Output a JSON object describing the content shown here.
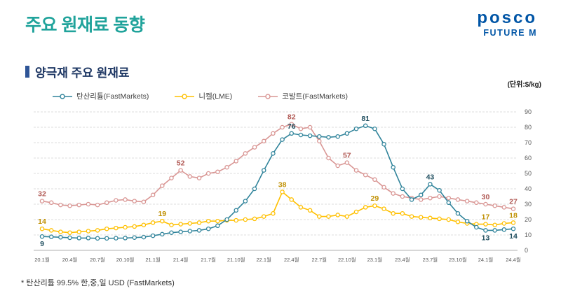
{
  "header": {
    "title": "주요 원재료 동향",
    "logo": {
      "line1": "posco",
      "line2": "FUTURE M"
    },
    "section_title": "양극재 주요 원재료",
    "unit_label": "(단위:$/kg)"
  },
  "footnote": "* 탄산리튬 99.5% 한,중,일 USD (FastMarkets)",
  "colors": {
    "title": "#20A39B",
    "logo_blue": "#0055A6",
    "section_text": "#1F3864",
    "section_bar": "#2F5597",
    "grid": "#DCDCDC",
    "axis": "#AFAFAF",
    "tick_text": "#595959"
  },
  "chart_data": {
    "type": "line",
    "grid": true,
    "legend_position": "top",
    "ylim": [
      0,
      90
    ],
    "y_ticks": [
      0,
      10,
      20,
      30,
      40,
      50,
      60,
      70,
      80,
      90
    ],
    "x_tick_every": 3,
    "x_tick_labels": [
      "20.1월",
      "20.4월",
      "20.7월",
      "20.10월",
      "21.1월",
      "21.4월",
      "21.7월",
      "21.10월",
      "22.1월",
      "22.4월",
      "22.7월",
      "22.10월",
      "23.1월",
      "23.4월",
      "23.7월",
      "23.10월",
      "24.1월",
      "24.4월"
    ],
    "x": [
      "20.1",
      "20.2",
      "20.3",
      "20.4",
      "20.5",
      "20.6",
      "20.7",
      "20.8",
      "20.9",
      "20.10",
      "20.11",
      "20.12",
      "21.1",
      "21.2",
      "21.3",
      "21.4",
      "21.5",
      "21.6",
      "21.7",
      "21.8",
      "21.9",
      "21.10",
      "21.11",
      "21.12",
      "22.1",
      "22.2",
      "22.3",
      "22.4",
      "22.5",
      "22.6",
      "22.7",
      "22.8",
      "22.9",
      "22.10",
      "22.11",
      "22.12",
      "23.1",
      "23.2",
      "23.3",
      "23.4",
      "23.5",
      "23.6",
      "23.7",
      "23.8",
      "23.9",
      "23.10",
      "23.11",
      "23.12",
      "24.1",
      "24.2",
      "24.3",
      "24.4"
    ],
    "series": [
      {
        "name": "탄산리튬(FastMarkets)",
        "color": "#31849B",
        "label_color": "#1F4E5F",
        "values": [
          9,
          8.8,
          8.5,
          8.2,
          8,
          8,
          7.8,
          7.8,
          7.9,
          8,
          8.3,
          8.6,
          9.5,
          10.5,
          11.5,
          12,
          12.5,
          13,
          14,
          16,
          20,
          26,
          32,
          40,
          52,
          63,
          72,
          76,
          75,
          74.5,
          74,
          73.5,
          74,
          76,
          79,
          81,
          79,
          69,
          54,
          40,
          33,
          36,
          43,
          39,
          31,
          24,
          19,
          15,
          13,
          13,
          13.5,
          14
        ]
      },
      {
        "name": "니켈(LME)",
        "color": "#FFC000",
        "label_color": "#BF8F00",
        "values": [
          14,
          13,
          12,
          11.5,
          12,
          12.5,
          13,
          14,
          14.5,
          15,
          15.5,
          16.5,
          18,
          19,
          16.5,
          17,
          17.5,
          18,
          19,
          19,
          19.5,
          19.5,
          20,
          20.5,
          22,
          24,
          38,
          33,
          28,
          26,
          22,
          22,
          23,
          22,
          25,
          28,
          29,
          27,
          24,
          24,
          22,
          21.5,
          21,
          20.5,
          20,
          18.5,
          17.5,
          17,
          17,
          16.5,
          17.5,
          18
        ]
      },
      {
        "name": "코발트(FastMarkets)",
        "color": "#D99694",
        "label_color": "#B15A55",
        "values": [
          32,
          31,
          29.5,
          29,
          29.5,
          30,
          29.5,
          31,
          32.5,
          33,
          32,
          31.5,
          36,
          42,
          47,
          52,
          48,
          47,
          50,
          51,
          54,
          58,
          63,
          67,
          71,
          76,
          80,
          82,
          79,
          80,
          71,
          60,
          55,
          57,
          52,
          49,
          46,
          41,
          37,
          35,
          34,
          33,
          34,
          35,
          34,
          33,
          32,
          31,
          30,
          29,
          28,
          27
        ]
      }
    ],
    "point_labels": [
      {
        "series": 0,
        "index": 0,
        "text": "9",
        "pos": "below"
      },
      {
        "series": 0,
        "index": 27,
        "text": "76",
        "pos": "above"
      },
      {
        "series": 0,
        "index": 35,
        "text": "81",
        "pos": "above"
      },
      {
        "series": 0,
        "index": 42,
        "text": "43",
        "pos": "above"
      },
      {
        "series": 0,
        "index": 48,
        "text": "13",
        "pos": "below"
      },
      {
        "series": 0,
        "index": 51,
        "text": "14",
        "pos": "below"
      },
      {
        "series": 1,
        "index": 0,
        "text": "14",
        "pos": "above"
      },
      {
        "series": 1,
        "index": 13,
        "text": "19",
        "pos": "above"
      },
      {
        "series": 1,
        "index": 26,
        "text": "38",
        "pos": "above"
      },
      {
        "series": 1,
        "index": 36,
        "text": "29",
        "pos": "above"
      },
      {
        "series": 1,
        "index": 48,
        "text": "17",
        "pos": "above"
      },
      {
        "series": 1,
        "index": 51,
        "text": "18",
        "pos": "above"
      },
      {
        "series": 2,
        "index": 0,
        "text": "32",
        "pos": "above"
      },
      {
        "series": 2,
        "index": 15,
        "text": "52",
        "pos": "above"
      },
      {
        "series": 2,
        "index": 27,
        "text": "82",
        "pos": "above"
      },
      {
        "series": 2,
        "index": 33,
        "text": "57",
        "pos": "above"
      },
      {
        "series": 2,
        "index": 48,
        "text": "30",
        "pos": "above"
      },
      {
        "series": 2,
        "index": 51,
        "text": "27",
        "pos": "above"
      }
    ]
  }
}
